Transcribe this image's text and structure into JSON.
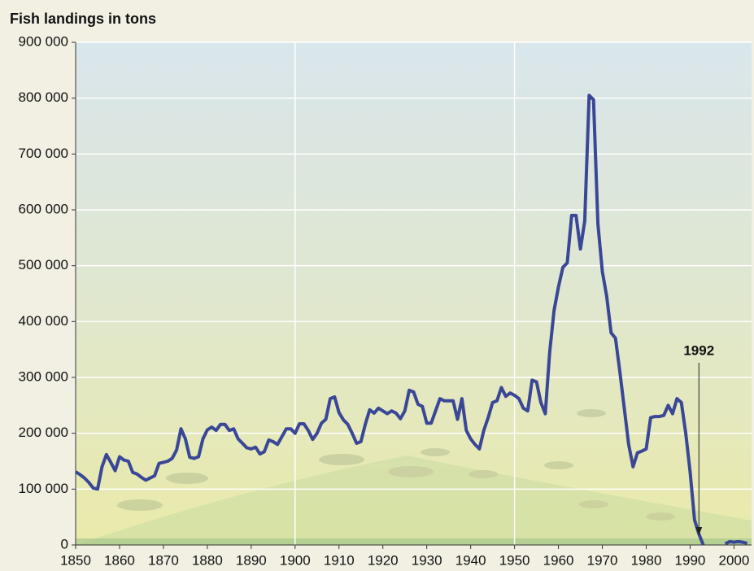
{
  "chart_data": {
    "type": "line",
    "title": "Fish landings in tons",
    "x": [
      1850,
      1851,
      1852,
      1853,
      1854,
      1855,
      1856,
      1857,
      1858,
      1859,
      1860,
      1861,
      1862,
      1863,
      1864,
      1865,
      1866,
      1867,
      1868,
      1869,
      1870,
      1871,
      1872,
      1873,
      1874,
      1875,
      1876,
      1877,
      1878,
      1879,
      1880,
      1881,
      1882,
      1883,
      1884,
      1885,
      1886,
      1887,
      1888,
      1889,
      1890,
      1891,
      1892,
      1893,
      1894,
      1895,
      1896,
      1897,
      1898,
      1899,
      1900,
      1901,
      1902,
      1903,
      1904,
      1905,
      1906,
      1907,
      1908,
      1909,
      1910,
      1911,
      1912,
      1913,
      1914,
      1915,
      1916,
      1917,
      1918,
      1919,
      1920,
      1921,
      1922,
      1923,
      1924,
      1925,
      1926,
      1927,
      1928,
      1929,
      1930,
      1931,
      1932,
      1933,
      1934,
      1935,
      1936,
      1937,
      1938,
      1939,
      1940,
      1941,
      1942,
      1943,
      1944,
      1945,
      1946,
      1947,
      1948,
      1949,
      1950,
      1951,
      1952,
      1953,
      1954,
      1955,
      1956,
      1957,
      1958,
      1959,
      1960,
      1961,
      1962,
      1963,
      1964,
      1965,
      1966,
      1967,
      1968,
      1969,
      1970,
      1971,
      1972,
      1973,
      1974,
      1975,
      1976,
      1977,
      1978,
      1979,
      1980,
      1981,
      1982,
      1983,
      1984,
      1985,
      1986,
      1987,
      1988,
      1989,
      1990,
      1991,
      1992,
      1993,
      1994,
      1995,
      1996,
      1997,
      1998,
      1999,
      2000,
      2001,
      2002,
      2003
    ],
    "series": [
      {
        "color": "#3a4796",
        "values": [
          131000,
          126000,
          120000,
          112000,
          102000,
          100000,
          140000,
          162000,
          148000,
          133000,
          158000,
          152000,
          150000,
          130000,
          127000,
          121000,
          116000,
          120000,
          124000,
          146000,
          148000,
          150000,
          155000,
          170000,
          208000,
          190000,
          157000,
          155000,
          158000,
          190000,
          206000,
          211000,
          205000,
          216000,
          216000,
          205000,
          208000,
          190000,
          182000,
          174000,
          172000,
          175000,
          163000,
          167000,
          188000,
          185000,
          180000,
          194000,
          208000,
          208000,
          200000,
          217000,
          217000,
          205000,
          189000,
          200000,
          218000,
          225000,
          262000,
          265000,
          237000,
          224000,
          216000,
          200000,
          182000,
          185000,
          216000,
          242000,
          236000,
          245000,
          240000,
          235000,
          240000,
          236000,
          226000,
          240000,
          277000,
          274000,
          252000,
          248000,
          218000,
          218000,
          240000,
          262000,
          258000,
          258000,
          258000,
          225000,
          262000,
          205000,
          190000,
          180000,
          172000,
          205000,
          228000,
          255000,
          258000,
          282000,
          266000,
          272000,
          268000,
          262000,
          245000,
          240000,
          295000,
          292000,
          255000,
          235000,
          345000,
          420000,
          462000,
          497000,
          505000,
          590000,
          590000,
          530000,
          580000,
          805000,
          797000,
          575000,
          490000,
          445000,
          380000,
          370000,
          310000,
          245000,
          180000,
          140000,
          165000,
          168000,
          172000,
          228000,
          230000,
          230000,
          232000,
          250000,
          235000,
          262000,
          255000,
          200000,
          130000,
          45000,
          20000,
          0,
          null,
          null,
          null,
          null,
          2000,
          6000,
          5000,
          6000,
          5000,
          3000
        ]
      }
    ],
    "xlim": [
      1850,
      2004
    ],
    "xticks": [
      1850,
      1860,
      1870,
      1880,
      1890,
      1900,
      1910,
      1920,
      1930,
      1940,
      1950,
      1960,
      1970,
      1980,
      1990,
      2000
    ],
    "x_gridlines": [
      1900,
      1950
    ],
    "ylim": [
      0,
      900000
    ],
    "yticks": [
      0,
      {
        "value": 100000,
        "label": "100 000"
      },
      {
        "value": 200000,
        "label": "200 000"
      },
      {
        "value": 300000,
        "label": "300 000"
      },
      {
        "value": 400000,
        "label": "400 000"
      },
      {
        "value": 500000,
        "label": "500 000"
      },
      {
        "value": 600000,
        "label": "600 000"
      },
      {
        "value": 700000,
        "label": "700 000"
      },
      {
        "value": 800000,
        "label": "800 000"
      },
      {
        "value": 900000,
        "label": "900 000"
      }
    ],
    "grid": true,
    "annotations": [
      {
        "text": "1992",
        "x": 1992
      }
    ]
  }
}
